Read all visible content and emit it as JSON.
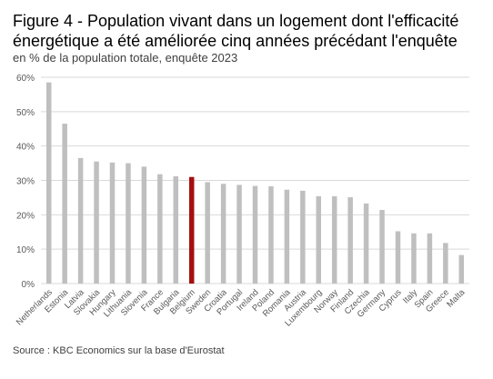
{
  "title": "Figure 4 - Population vivant dans un logement dont l'efficacité énergétique a été améliorée cinq années précédant l'enquête",
  "subtitle": "en % de la population totale, enquête 2023",
  "source": "Source : KBC Economics sur la base d'Eurostat",
  "colors": {
    "bar": "#bfbfbf",
    "highlight": "#a50f0f",
    "grid": "#d9d9d9",
    "tick_text": "#595959"
  },
  "chart_data": {
    "type": "bar",
    "categories": [
      "Netherlands",
      "Estonia",
      "Latvia",
      "Slovakia",
      "Hungary",
      "Lithuania",
      "Slovenia",
      "France",
      "Bulgaria",
      "Belgium",
      "Sweden",
      "Croatia",
      "Portugal",
      "Ireland",
      "Poland",
      "Romania",
      "Austria",
      "Luxembourg",
      "Norway",
      "Finland",
      "Czechia",
      "Germany",
      "Cyprus",
      "Italy",
      "Spain",
      "Greece",
      "Malta"
    ],
    "values": [
      58.5,
      46.5,
      36.5,
      35.5,
      35.2,
      35.0,
      34.0,
      31.8,
      31.2,
      31.0,
      29.5,
      29.0,
      28.7,
      28.4,
      28.3,
      27.3,
      27.0,
      25.4,
      25.4,
      25.1,
      23.3,
      21.4,
      15.2,
      14.6,
      14.6,
      11.8,
      8.3
    ],
    "highlight": "Belgium",
    "ylim": [
      0,
      60
    ],
    "yticks": [
      0,
      10,
      20,
      30,
      40,
      50,
      60
    ],
    "ytick_suffix": "%",
    "xlabel": "",
    "ylabel": "",
    "grid": true,
    "legend": "none"
  }
}
